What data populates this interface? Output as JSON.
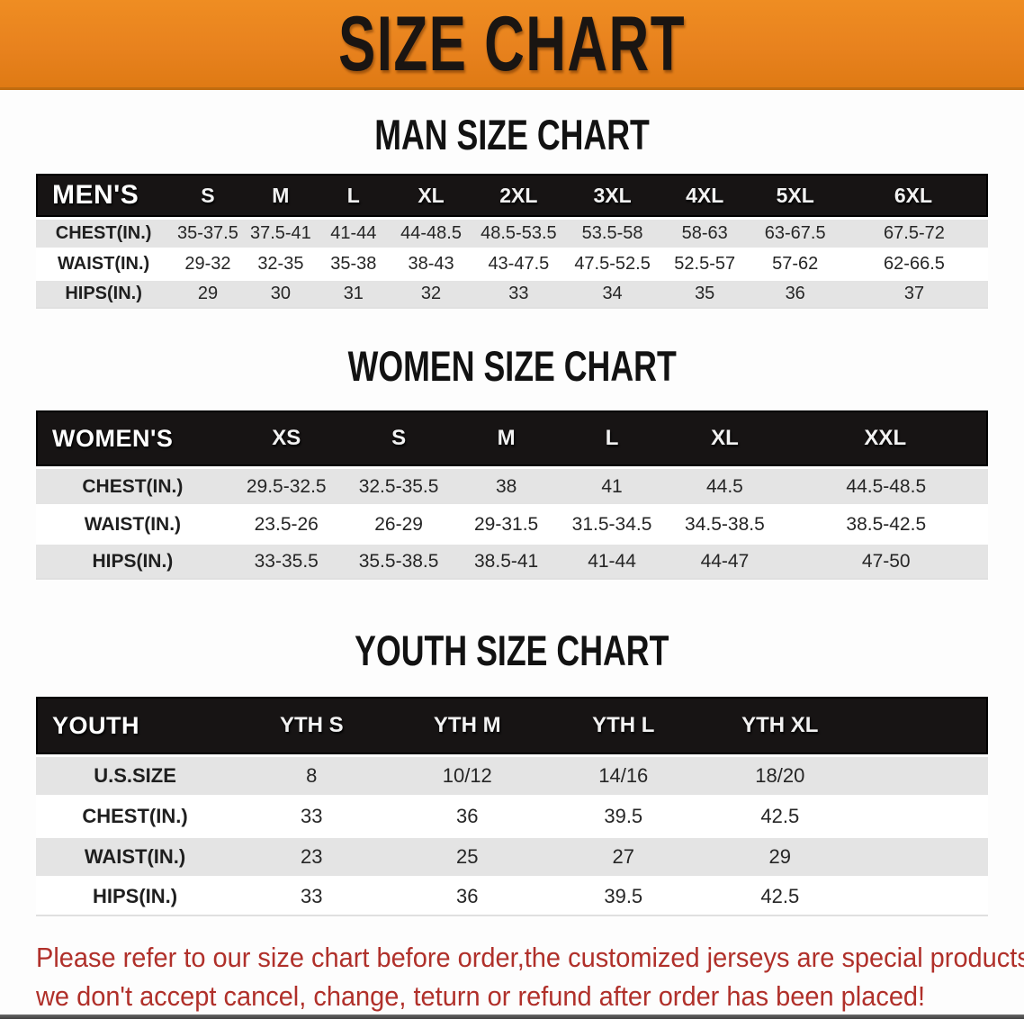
{
  "banner": {
    "title": "SIZE CHART"
  },
  "colors": {
    "banner_bg": "#E8821E",
    "header_band": "#171414",
    "stripe_row": "#E4E4E4",
    "notice_text": "#B0302A"
  },
  "sections": [
    {
      "heading": "MAN SIZE CHART",
      "table": {
        "label": "MEN'S",
        "columns": [
          "S",
          "M",
          "L",
          "XL",
          "2XL",
          "3XL",
          "4XL",
          "5XL",
          "6XL"
        ],
        "rows": [
          {
            "label": "CHEST(IN.)",
            "values": [
              "35-37.5",
              "37.5-41",
              "41-44",
              "44-48.5",
              "48.5-53.5",
              "53.5-58",
              "58-63",
              "63-67.5",
              "67.5-72"
            ]
          },
          {
            "label": "WAIST(IN.)",
            "values": [
              "29-32",
              "32-35",
              "35-38",
              "38-43",
              "43-47.5",
              "47.5-52.5",
              "52.5-57",
              "57-62",
              "62-66.5"
            ]
          },
          {
            "label": "HIPS(IN.)",
            "values": [
              "29",
              "30",
              "31",
              "32",
              "33",
              "34",
              "35",
              "36",
              "37"
            ]
          }
        ]
      }
    },
    {
      "heading": "WOMEN SIZE CHART",
      "table": {
        "label": "WOMEN'S",
        "columns": [
          "XS",
          "S",
          "M",
          "L",
          "XL",
          "XXL"
        ],
        "rows": [
          {
            "label": "CHEST(IN.)",
            "values": [
              "29.5-32.5",
              "32.5-35.5",
              "38",
              "41",
              "44.5",
              "44.5-48.5"
            ]
          },
          {
            "label": "WAIST(IN.)",
            "values": [
              "23.5-26",
              "26-29",
              "29-31.5",
              "31.5-34.5",
              "34.5-38.5",
              "38.5-42.5"
            ]
          },
          {
            "label": "HIPS(IN.)",
            "values": [
              "33-35.5",
              "35.5-38.5",
              "38.5-41",
              "41-44",
              "44-47",
              "47-50"
            ]
          }
        ]
      }
    },
    {
      "heading": "YOUTH SIZE CHART",
      "table": {
        "label": "YOUTH",
        "columns": [
          "YTH S",
          "YTH M",
          "YTH L",
          "YTH XL"
        ],
        "rows": [
          {
            "label": "U.S.SIZE",
            "values": [
              "8",
              "10/12",
              "14/16",
              "18/20"
            ]
          },
          {
            "label": "CHEST(IN.)",
            "values": [
              "33",
              "36",
              "39.5",
              "42.5"
            ]
          },
          {
            "label": "WAIST(IN.)",
            "values": [
              "23",
              "25",
              "27",
              "29"
            ]
          },
          {
            "label": "HIPS(IN.)",
            "values": [
              "33",
              "36",
              "39.5",
              "42.5"
            ]
          }
        ]
      }
    }
  ],
  "footer": {
    "line1": "Please refer to our size chart before order,the customized jerseys are special products,",
    "line2": "we don't accept cancel, change, teturn or refund after order has been placed!"
  }
}
